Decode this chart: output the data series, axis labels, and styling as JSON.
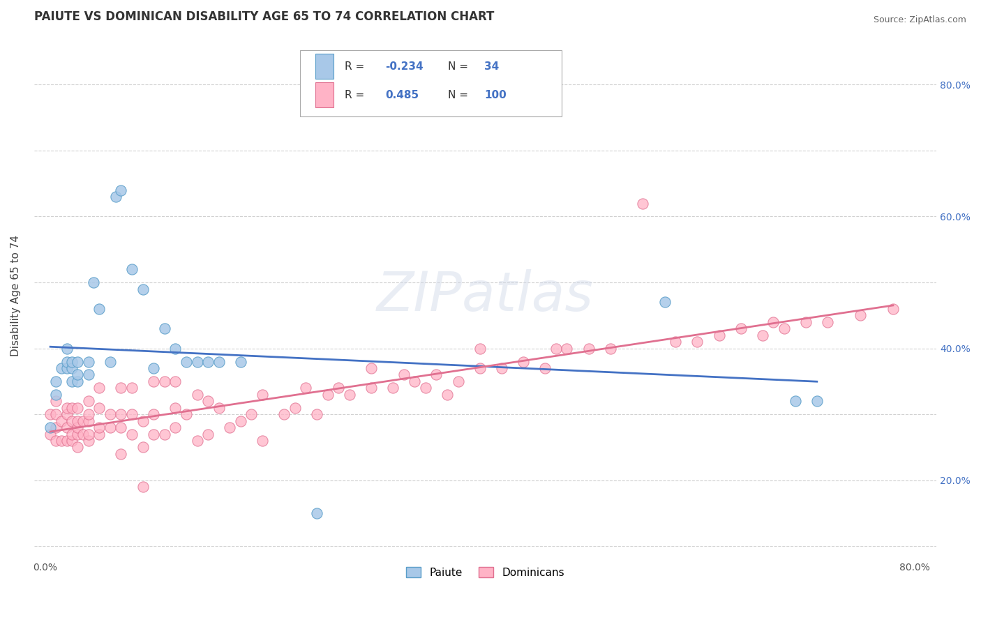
{
  "title": "PAIUTE VS DOMINICAN DISABILITY AGE 65 TO 74 CORRELATION CHART",
  "source": "Source: ZipAtlas.com",
  "ylabel": "Disability Age 65 to 74",
  "xlim": [
    -0.01,
    0.82
  ],
  "ylim": [
    0.08,
    0.88
  ],
  "xtick_vals": [
    0.0,
    0.1,
    0.2,
    0.3,
    0.4,
    0.5,
    0.6,
    0.7,
    0.8
  ],
  "xticklabels": [
    "0.0%",
    "",
    "",
    "",
    "",
    "",
    "",
    "",
    "80.0%"
  ],
  "ytick_vals": [
    0.1,
    0.2,
    0.3,
    0.4,
    0.5,
    0.6,
    0.7,
    0.8
  ],
  "yticklabels_right": [
    "",
    "20.0%",
    "",
    "40.0%",
    "",
    "60.0%",
    "",
    "80.0%"
  ],
  "paiute_color": "#A8C8E8",
  "paiute_edge_color": "#5A9EC9",
  "dominican_color": "#FFB3C6",
  "dominican_edge_color": "#E07090",
  "paiute_line_color": "#4472C4",
  "dominican_line_color": "#E07090",
  "r_paiute": -0.234,
  "n_paiute": 34,
  "r_dominican": 0.485,
  "n_dominican": 100,
  "paiute_x": [
    0.005,
    0.01,
    0.01,
    0.015,
    0.02,
    0.02,
    0.02,
    0.025,
    0.025,
    0.025,
    0.03,
    0.03,
    0.03,
    0.04,
    0.04,
    0.045,
    0.05,
    0.06,
    0.065,
    0.07,
    0.08,
    0.09,
    0.1,
    0.11,
    0.12,
    0.13,
    0.14,
    0.15,
    0.16,
    0.18,
    0.25,
    0.57,
    0.69,
    0.71
  ],
  "paiute_y": [
    0.28,
    0.33,
    0.35,
    0.37,
    0.37,
    0.38,
    0.4,
    0.35,
    0.37,
    0.38,
    0.35,
    0.36,
    0.38,
    0.36,
    0.38,
    0.5,
    0.46,
    0.38,
    0.63,
    0.64,
    0.52,
    0.49,
    0.37,
    0.43,
    0.4,
    0.38,
    0.38,
    0.38,
    0.38,
    0.38,
    0.15,
    0.47,
    0.32,
    0.32
  ],
  "dominican_x": [
    0.005,
    0.005,
    0.01,
    0.01,
    0.01,
    0.01,
    0.015,
    0.015,
    0.02,
    0.02,
    0.02,
    0.02,
    0.025,
    0.025,
    0.025,
    0.025,
    0.03,
    0.03,
    0.03,
    0.03,
    0.03,
    0.035,
    0.035,
    0.04,
    0.04,
    0.04,
    0.04,
    0.04,
    0.05,
    0.05,
    0.05,
    0.05,
    0.06,
    0.06,
    0.07,
    0.07,
    0.07,
    0.07,
    0.08,
    0.08,
    0.08,
    0.09,
    0.09,
    0.09,
    0.1,
    0.1,
    0.1,
    0.11,
    0.11,
    0.12,
    0.12,
    0.12,
    0.13,
    0.14,
    0.14,
    0.15,
    0.15,
    0.16,
    0.17,
    0.18,
    0.19,
    0.2,
    0.2,
    0.22,
    0.23,
    0.24,
    0.25,
    0.26,
    0.27,
    0.28,
    0.3,
    0.3,
    0.32,
    0.33,
    0.34,
    0.35,
    0.36,
    0.37,
    0.38,
    0.4,
    0.4,
    0.42,
    0.44,
    0.46,
    0.47,
    0.48,
    0.5,
    0.52,
    0.55,
    0.58,
    0.6,
    0.62,
    0.64,
    0.66,
    0.67,
    0.68,
    0.7,
    0.72,
    0.75,
    0.78
  ],
  "dominican_y": [
    0.27,
    0.3,
    0.26,
    0.28,
    0.3,
    0.32,
    0.26,
    0.29,
    0.26,
    0.28,
    0.3,
    0.31,
    0.26,
    0.27,
    0.29,
    0.31,
    0.25,
    0.27,
    0.28,
    0.29,
    0.31,
    0.27,
    0.29,
    0.26,
    0.27,
    0.29,
    0.3,
    0.32,
    0.27,
    0.28,
    0.31,
    0.34,
    0.28,
    0.3,
    0.24,
    0.28,
    0.3,
    0.34,
    0.27,
    0.3,
    0.34,
    0.25,
    0.29,
    0.19,
    0.27,
    0.3,
    0.35,
    0.27,
    0.35,
    0.28,
    0.31,
    0.35,
    0.3,
    0.26,
    0.33,
    0.27,
    0.32,
    0.31,
    0.28,
    0.29,
    0.3,
    0.26,
    0.33,
    0.3,
    0.31,
    0.34,
    0.3,
    0.33,
    0.34,
    0.33,
    0.34,
    0.37,
    0.34,
    0.36,
    0.35,
    0.34,
    0.36,
    0.33,
    0.35,
    0.37,
    0.4,
    0.37,
    0.38,
    0.37,
    0.4,
    0.4,
    0.4,
    0.4,
    0.62,
    0.41,
    0.41,
    0.42,
    0.43,
    0.42,
    0.44,
    0.43,
    0.44,
    0.44,
    0.45,
    0.46
  ],
  "background_color": "#FFFFFF",
  "grid_color": "#CCCCCC",
  "title_fontsize": 12,
  "axis_label_fontsize": 11,
  "tick_fontsize": 10
}
